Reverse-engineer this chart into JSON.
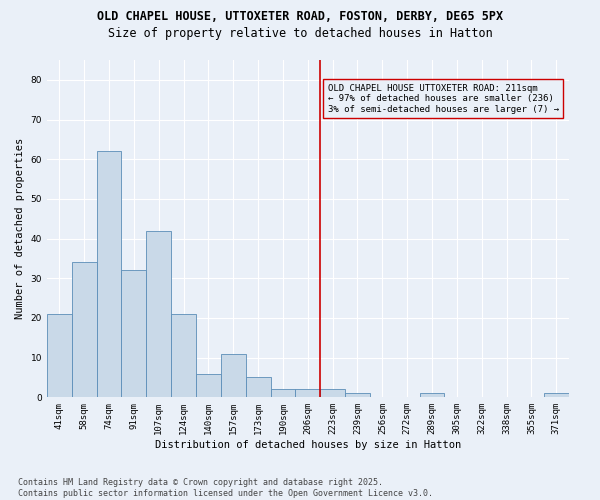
{
  "title1": "OLD CHAPEL HOUSE, UTTOXETER ROAD, FOSTON, DERBY, DE65 5PX",
  "title2": "Size of property relative to detached houses in Hatton",
  "xlabel": "Distribution of detached houses by size in Hatton",
  "ylabel": "Number of detached properties",
  "categories": [
    "41sqm",
    "58sqm",
    "74sqm",
    "91sqm",
    "107sqm",
    "124sqm",
    "140sqm",
    "157sqm",
    "173sqm",
    "190sqm",
    "206sqm",
    "223sqm",
    "239sqm",
    "256sqm",
    "272sqm",
    "289sqm",
    "305sqm",
    "322sqm",
    "338sqm",
    "355sqm",
    "371sqm"
  ],
  "values": [
    21,
    34,
    62,
    32,
    42,
    21,
    6,
    11,
    5,
    2,
    2,
    2,
    1,
    0,
    0,
    1,
    0,
    0,
    0,
    0,
    1
  ],
  "bar_color": "#c9d9e8",
  "bar_edgecolor": "#5b8db8",
  "bg_color": "#eaf0f8",
  "grid_color": "#ffffff",
  "vline_x_index": 10,
  "vline_color": "#cc0000",
  "annotation_text": "OLD CHAPEL HOUSE UTTOXETER ROAD: 211sqm\n← 97% of detached houses are smaller (236)\n3% of semi-detached houses are larger (7) →",
  "annotation_box_edgecolor": "#cc0000",
  "annotation_box_facecolor": "#eaf0f8",
  "ylim": [
    0,
    85
  ],
  "yticks": [
    0,
    10,
    20,
    30,
    40,
    50,
    60,
    70,
    80
  ],
  "footnote": "Contains HM Land Registry data © Crown copyright and database right 2025.\nContains public sector information licensed under the Open Government Licence v3.0.",
  "title_fontsize": 8.5,
  "subtitle_fontsize": 8.5,
  "axis_label_fontsize": 7.5,
  "tick_fontsize": 6.5,
  "annotation_fontsize": 6.5,
  "footnote_fontsize": 6.0
}
